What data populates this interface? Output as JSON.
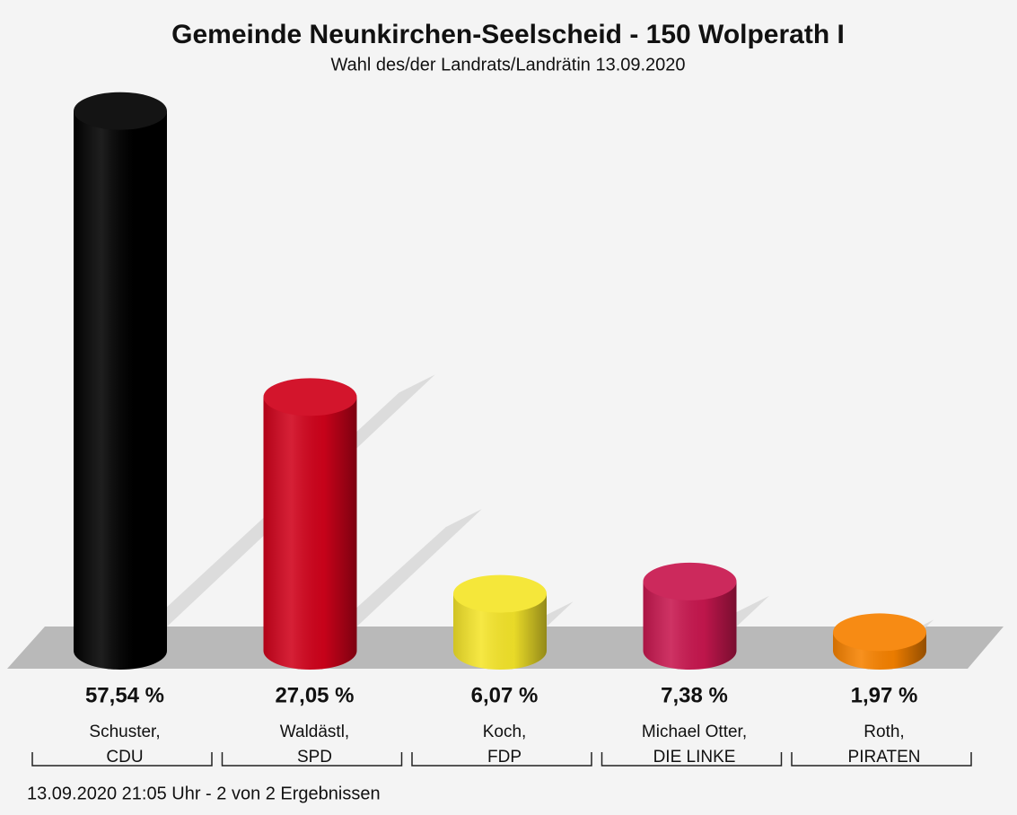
{
  "chart_data": {
    "type": "bar",
    "title": "Gemeinde Neunkirchen-Seelscheid - 150 Wolperath I",
    "subtitle": "Wahl des/der Landrats/Landrätin 13.09.2020",
    "categories": [
      [
        "Schuster,",
        "CDU"
      ],
      [
        "Waldästl,",
        "SPD"
      ],
      [
        "Koch,",
        "FDP"
      ],
      [
        "Michael Otter,",
        "DIE LINKE"
      ],
      [
        "Roth,",
        "PIRATEN"
      ]
    ],
    "values": [
      57.54,
      27.05,
      6.07,
      7.38,
      1.97
    ],
    "value_labels": [
      "57,54 %",
      "27,05 %",
      "6,07 %",
      "7,38 %",
      "1,97 %"
    ],
    "colors": [
      "#000000",
      "#d0021b",
      "#f5e52a",
      "#c8174f",
      "#f78200"
    ],
    "footer": "13.09.2020 21:05 Uhr - 2 von 2 Ergebnissen"
  }
}
